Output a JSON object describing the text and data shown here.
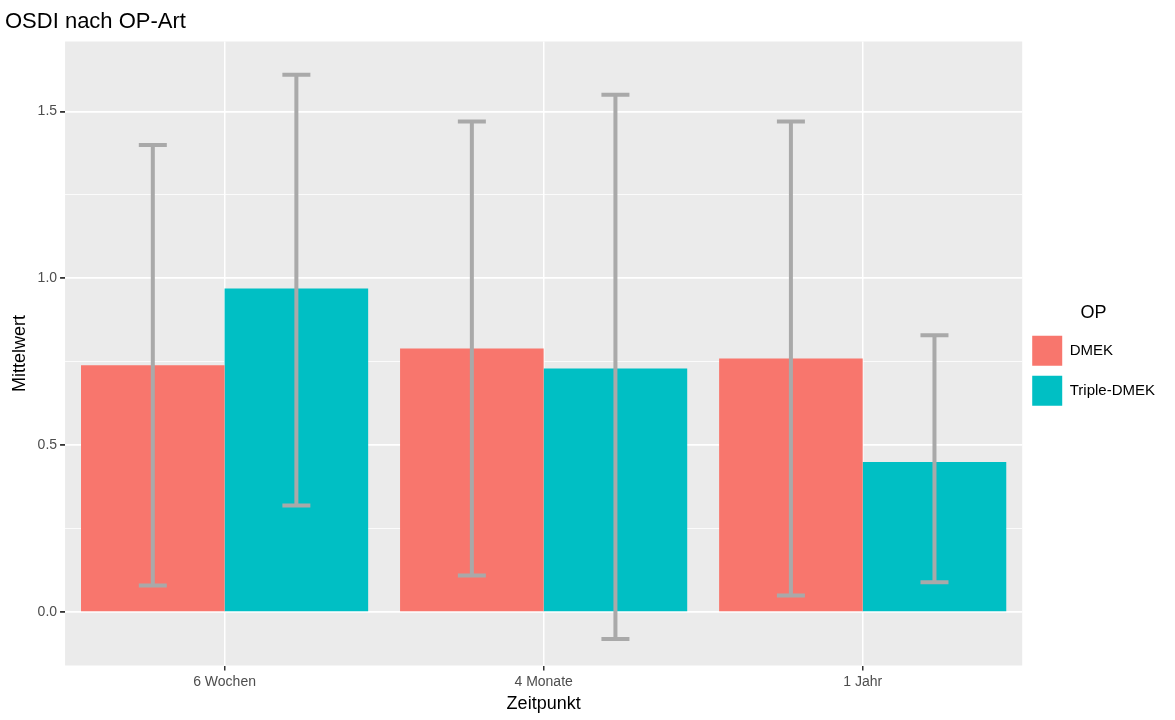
{
  "chart_data": {
    "type": "bar",
    "title": "OSDI nach OP-Art",
    "xlabel": "Zeitpunkt",
    "ylabel": "Mittelwert",
    "legend_title": "OP",
    "categories": [
      "6 Wochen",
      "4 Monate",
      "1 Jahr"
    ],
    "series": [
      {
        "name": "DMEK",
        "color": "#f8766d",
        "values": [
          0.74,
          0.79,
          0.76
        ],
        "errors": [
          [
            0.08,
            1.4
          ],
          [
            0.11,
            1.47
          ],
          [
            0.05,
            1.47
          ]
        ]
      },
      {
        "name": "Triple-DMEK",
        "color": "#00bfc4",
        "values": [
          0.97,
          0.73,
          0.45
        ],
        "errors": [
          [
            0.32,
            1.61
          ],
          [
            -0.08,
            1.55
          ],
          [
            0.09,
            0.83
          ]
        ]
      }
    ],
    "ylim": [
      -0.16,
      1.71
    ],
    "yticks": [
      {
        "value": 0,
        "label": "0.0"
      },
      {
        "value": 0.25,
        "label": null
      },
      {
        "value": 0.5,
        "label": "0.5"
      },
      {
        "value": 0.75,
        "label": null
      },
      {
        "value": 1,
        "label": "1.0"
      },
      {
        "value": 1.25,
        "label": null
      },
      {
        "value": 1.5,
        "label": "1.5"
      }
    ],
    "grid": true,
    "legend": "right"
  }
}
